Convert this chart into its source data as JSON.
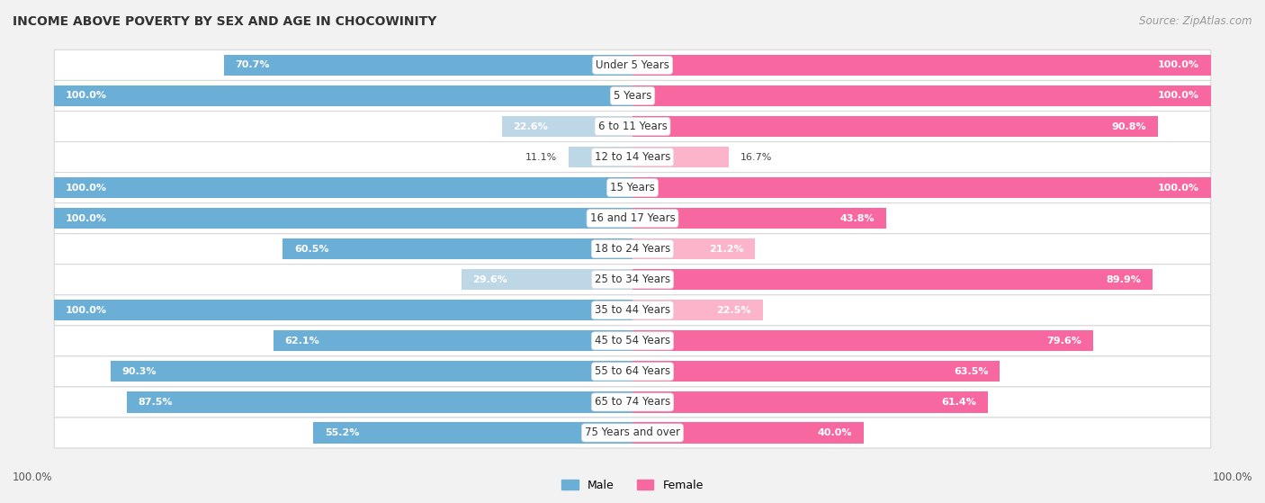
{
  "title": "INCOME ABOVE POVERTY BY SEX AND AGE IN CHOCOWINITY",
  "source": "Source: ZipAtlas.com",
  "categories": [
    "Under 5 Years",
    "5 Years",
    "6 to 11 Years",
    "12 to 14 Years",
    "15 Years",
    "16 and 17 Years",
    "18 to 24 Years",
    "25 to 34 Years",
    "35 to 44 Years",
    "45 to 54 Years",
    "55 to 64 Years",
    "65 to 74 Years",
    "75 Years and over"
  ],
  "male_values": [
    70.7,
    100.0,
    22.6,
    11.1,
    100.0,
    100.0,
    60.5,
    29.6,
    100.0,
    62.1,
    90.3,
    87.5,
    55.2
  ],
  "female_values": [
    100.0,
    100.0,
    90.8,
    16.7,
    100.0,
    43.8,
    21.2,
    89.9,
    22.5,
    79.6,
    63.5,
    61.4,
    40.0
  ],
  "male_color": "#6baed6",
  "female_color": "#f768a1",
  "male_light_color": "#bdd7e7",
  "female_light_color": "#fbb4c9",
  "row_bg_color": "#ffffff",
  "row_border_color": "#d8d8d8",
  "page_bg_color": "#f2f2f2",
  "max_value": 100.0,
  "bar_height": 0.68,
  "title_fontsize": 10,
  "source_fontsize": 8.5,
  "cat_label_fontsize": 8.5,
  "bar_label_fontsize": 8,
  "legend_fontsize": 9
}
